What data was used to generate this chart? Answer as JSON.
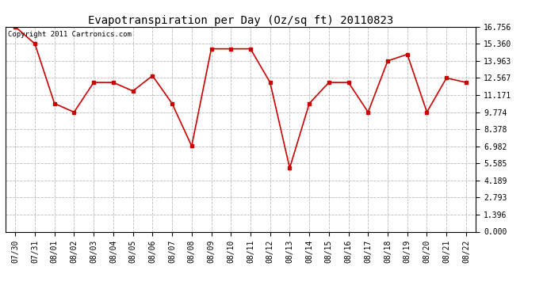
{
  "title": "Evapotranspiration per Day (Oz/sq ft) 20110823",
  "copyright_text": "Copyright 2011 Cartronics.com",
  "dates": [
    "07/30",
    "07/31",
    "08/01",
    "08/02",
    "08/03",
    "08/04",
    "08/05",
    "08/06",
    "08/07",
    "08/08",
    "08/09",
    "08/10",
    "08/11",
    "08/12",
    "08/13",
    "08/14",
    "08/15",
    "08/16",
    "08/17",
    "08/18",
    "08/19",
    "08/20",
    "08/21",
    "08/22"
  ],
  "values": [
    16.756,
    15.36,
    10.48,
    9.774,
    12.2,
    12.2,
    11.5,
    12.75,
    10.48,
    7.0,
    14.95,
    14.95,
    14.95,
    12.2,
    5.2,
    10.48,
    12.2,
    12.2,
    9.774,
    13.96,
    14.5,
    9.774,
    12.567,
    12.2
  ],
  "yticks": [
    0.0,
    1.396,
    2.793,
    4.189,
    5.585,
    6.982,
    8.378,
    9.774,
    11.171,
    12.567,
    13.963,
    15.36,
    16.756
  ],
  "ylim": [
    0.0,
    16.756
  ],
  "line_color": "#cc0000",
  "marker_color": "#cc0000",
  "marker": "s",
  "marker_size": 2.5,
  "line_width": 1.2,
  "bg_color": "#ffffff",
  "grid_color": "#bbbbbb",
  "title_fontsize": 10,
  "tick_fontsize": 7,
  "copyright_fontsize": 6.5
}
